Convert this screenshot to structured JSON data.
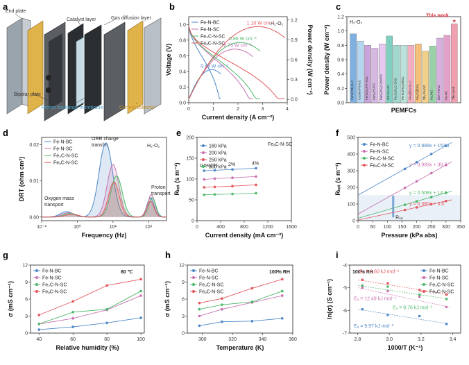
{
  "colors": {
    "BC": "#4a86c8",
    "SC": "#c86fb0",
    "Fe3C": "#4cb86a",
    "FeAC": "#e3555a",
    "P160": "#4a86c8",
    "P200": "#c86fb0",
    "P250": "#e3555a",
    "P300": "#4cb86a",
    "work": "#d9303a"
  },
  "schematic": {
    "label": "a",
    "end_plate": "End plate",
    "catalyst_layer": "Catalyst layer",
    "gas_diffusion_layer": "Gas diffusion layer",
    "bipolar_plate": "Bipolar plate",
    "pem": "Proton exchange membrane",
    "current_collector": "Current collector"
  },
  "chart_data": [
    {
      "panel": "b",
      "type": "line",
      "xlabel": "Current density (A cm⁻²)",
      "ylabel": "Voltage (V)",
      "y2label": "Power density (W cm⁻²)",
      "xlim": [
        0,
        4
      ],
      "ylim": [
        0,
        1.1
      ],
      "y2lim": [
        -0.05,
        1.25
      ],
      "xticks": [
        "0",
        "1",
        "2",
        "3",
        "4"
      ],
      "yticks": [
        "0.0",
        "0.2",
        "0.4",
        "0.6",
        "0.8",
        "1.0"
      ],
      "y2ticks": [
        "0.0",
        "0.3",
        "0.6",
        "0.9",
        "1.2"
      ],
      "annotation": "H₂-O₂",
      "legend": [
        "Fe-N-BC",
        "Fe-N-SC",
        "Fe₃C-N-SC",
        "FeₐC-N-SC"
      ],
      "series": [
        {
          "name": "Fe-N-BC",
          "key": "BC",
          "max_j": 1.3,
          "max_p": 0.45,
          "label": "0.45 W cm⁻²"
        },
        {
          "name": "Fe-N-SC",
          "key": "SC",
          "max_j": 2.6,
          "max_p": 0.76,
          "label": "0.76 W cm⁻²"
        },
        {
          "name": "Fe₃C-N-SC",
          "key": "Fe3C",
          "max_j": 2.9,
          "max_p": 0.86,
          "label": "0.86 W cm⁻²"
        },
        {
          "name": "FeₐC-N-SC",
          "key": "FeAC",
          "max_j": 3.9,
          "max_p": 1.1,
          "label": "1.10 W cm⁻²"
        }
      ]
    },
    {
      "panel": "c",
      "type": "bar",
      "title": "H₂-O₂",
      "xlabel": "PEMFCs",
      "ylabel": "Power density (W cm⁻²)",
      "ylim": [
        0,
        1.2
      ],
      "yticks": [
        "0.0",
        "0.2",
        "0.4",
        "0.6",
        "0.8",
        "1.0",
        "1.2"
      ],
      "callout": "This work",
      "categories": [
        "FeNC/Sb₁N₄C",
        "Cyclen-FeN₄C",
        "Fe/SnS₂/Fe-SNC",
        "FeN₄/HOPC",
        "FeN₄/FeₓC-CNP/C",
        "OP-Fe-NC",
        "Fe₁S₁/N₄C-SNC",
        "Fe-N₄/FeₓC/BNC",
        "Fe₃@Fe-N₄-C",
        "Fe₃C@NG₂",
        "Sb₁-Fe₁NC",
        "Fe₁/NC",
        "dSA-FeNC",
        "Fe-NC",
        "This work"
      ],
      "values": [
        0.96,
        0.86,
        0.8,
        0.76,
        0.82,
        0.93,
        0.8,
        0.8,
        0.8,
        0.82,
        0.72,
        0.79,
        0.9,
        0.94,
        1.1
      ],
      "bar_colors": [
        "#7fb0e0",
        "#b5d6f0",
        "#c9a3d9",
        "#d7b8e3",
        "#e6c9f0",
        "#7fcfc0",
        "#a0d8cf",
        "#b9e3da",
        "#f3b0c0",
        "#f5c07a",
        "#f1d08a",
        "#9ad0a8",
        "#d8b0e0",
        "#e3a0c8",
        "#f0a0b0"
      ]
    },
    {
      "panel": "d",
      "type": "area",
      "xlabel": "Frequency (Hz)",
      "ylabel": "DRT (ohm cm²)",
      "xlim_log10": [
        -2,
        5
      ],
      "ylim": [
        -0.001,
        0.022
      ],
      "xticks": [
        "10⁻²",
        "10⁰",
        "10²",
        "10⁴"
      ],
      "yticks": [
        "0.00",
        "0.01",
        "0.02"
      ],
      "annotation": "H₂-O₂",
      "annotations": [
        "Oxygen mass transport",
        "ORR charge transfer",
        "Proton transport"
      ],
      "legend": [
        "Fe-N-BC",
        "Fe-N-SC",
        "Fe₃C-N-SC",
        "FeₐC-N-SC"
      ],
      "series": [
        {
          "name": "Fe-N-BC",
          "key": "BC",
          "peaks": [
            [
              -0.6,
              0.0015,
              0.35
            ],
            [
              1.6,
              0.0205,
              0.38
            ],
            [
              4.1,
              0.0053,
              0.2
            ]
          ]
        },
        {
          "name": "Fe-N-SC",
          "key": "SC",
          "peaks": [
            [
              -0.5,
              0.0012,
              0.35
            ],
            [
              2.0,
              0.0145,
              0.33
            ],
            [
              4.15,
              0.0062,
              0.2
            ]
          ]
        },
        {
          "name": "Fe₃C-N-SC",
          "key": "Fe3C",
          "peaks": [
            [
              -0.4,
              0.001,
              0.35
            ],
            [
              2.2,
              0.0114,
              0.32
            ],
            [
              4.2,
              0.0054,
              0.2
            ]
          ]
        },
        {
          "name": "FeₐC-N-SC",
          "key": "FeAC",
          "peaks": [
            [
              -0.3,
              0.0008,
              0.35
            ],
            [
              2.05,
              0.0097,
              0.3
            ],
            [
              4.1,
              0.0044,
              0.2
            ]
          ]
        }
      ]
    },
    {
      "panel": "e",
      "type": "scatter",
      "xlabel": "Current density (mA cm⁻²)",
      "ylabel": "Rₜₒₜ (s m⁻¹)",
      "xlim": [
        0,
        1600
      ],
      "ylim": [
        0,
        200
      ],
      "xticks": [
        "0",
        "400",
        "800",
        "1200",
        "1600"
      ],
      "yticks": [
        "0",
        "50",
        "100",
        "150",
        "200"
      ],
      "annotation": "FeₐC-N-SC",
      "pct_labels": [
        "0.5%",
        "1%",
        "2%",
        "4%"
      ],
      "legend": [
        "160 kPa",
        "200 kPa",
        "250 kPa",
        "300 kPa"
      ],
      "x": [
        120,
        300,
        600,
        1000
      ],
      "series": [
        {
          "name": "160 kPa",
          "key": "P160",
          "values": [
            120,
            121,
            123,
            126
          ]
        },
        {
          "name": "200 kPa",
          "key": "P200",
          "values": [
            99,
            101,
            103,
            106
          ]
        },
        {
          "name": "250 kPa",
          "key": "P250",
          "values": [
            80,
            81,
            83,
            86
          ]
        },
        {
          "name": "300 kPa",
          "key": "P300",
          "values": [
            62,
            63,
            64,
            66
          ]
        }
      ]
    },
    {
      "panel": "f",
      "type": "scatter",
      "xlabel": "Pressure (kPa abs)",
      "ylabel": "Rₜₒₜ (s m⁻¹)",
      "xlim": [
        0,
        350
      ],
      "ylim": [
        0,
        500
      ],
      "xticks": [
        "0",
        "50",
        "100",
        "150",
        "200",
        "250",
        "300",
        "350"
      ],
      "yticks": [
        "0",
        "100",
        "200",
        "300",
        "400",
        "500"
      ],
      "rnp_label": "Rₙₚ",
      "legend": [
        "Fe-N-BC",
        "Fe-N-SC",
        "Fe₃C-N-SC",
        "FeₐC-N-SC"
      ],
      "x": [
        160,
        200,
        250,
        300
      ],
      "series": [
        {
          "name": "Fe-N-BC",
          "key": "BC",
          "slope": 0.989,
          "intercept": 153.1,
          "eq": "y = 0.989x + 153.1"
        },
        {
          "name": "Fe-N-SC",
          "key": "SC",
          "slope": 0.983,
          "intercept": 39.7,
          "eq": "y = 0.983x + 39.7"
        },
        {
          "name": "Fe₃C-N-SC",
          "key": "Fe3C",
          "slope": 0.508,
          "intercept": 14.4,
          "eq": "y = 0.508x + 14.4"
        },
        {
          "name": "FeₐC-N-SC",
          "key": "FeAC",
          "slope": 0.38,
          "intercept": 3.6,
          "eq": "y = 0.380x + 3.6"
        }
      ]
    },
    {
      "panel": "g",
      "type": "line",
      "xlabel": "Relative humidity (%)",
      "ylabel": "σ (mS cm⁻¹)",
      "xlim": [
        35,
        102
      ],
      "ylim": [
        0,
        12
      ],
      "xticks": [
        "40",
        "60",
        "80",
        "100"
      ],
      "yticks": [
        "0",
        "3",
        "6",
        "9",
        "12"
      ],
      "annotation": "80 ℃",
      "legend": [
        "Fe-N-BC",
        "Fe-N-SC",
        "Fe₃C-N-SC",
        "FeₐC-N-SC"
      ],
      "x": [
        40,
        60,
        80,
        100
      ],
      "series": [
        {
          "name": "Fe-N-BC",
          "key": "BC",
          "values": [
            0.6,
            1.1,
            1.8,
            2.7
          ]
        },
        {
          "name": "Fe-N-SC",
          "key": "SC",
          "values": [
            1.6,
            2.6,
            4.1,
            6.6
          ]
        },
        {
          "name": "Fe₃C-N-SC",
          "key": "Fe3C",
          "values": [
            1.6,
            3.7,
            4.2,
            7.4
          ]
        },
        {
          "name": "FeₐC-N-SC",
          "key": "FeAC",
          "values": [
            3.2,
            5.6,
            8.4,
            9.5
          ]
        }
      ]
    },
    {
      "panel": "h",
      "type": "line",
      "xlabel": "Temperature (K)",
      "ylabel": "σ (mS cm⁻¹)",
      "xlim": [
        290,
        360
      ],
      "ylim": [
        0,
        12
      ],
      "xticks": [
        "300",
        "320",
        "340",
        "360"
      ],
      "yticks": [
        "0",
        "3",
        "6",
        "9",
        "12"
      ],
      "annotation": "100% RH",
      "legend": [
        "Fe-N-BC",
        "Fe-N-SC",
        "Fe₃C-N-SC",
        "FeₐC-N-SC"
      ],
      "x": [
        298,
        313,
        333,
        353
      ],
      "series": [
        {
          "name": "Fe-N-BC",
          "key": "BC",
          "values": [
            1.3,
            2.0,
            2.1,
            2.6
          ]
        },
        {
          "name": "Fe-N-SC",
          "key": "SC",
          "values": [
            3.0,
            4.2,
            5.4,
            6.6
          ]
        },
        {
          "name": "Fe₃C-N-SC",
          "key": "Fe3C",
          "values": [
            4.2,
            5.0,
            5.5,
            7.4
          ]
        },
        {
          "name": "FeₐC-N-SC",
          "key": "FeAC",
          "values": [
            5.3,
            6.1,
            7.9,
            9.5
          ]
        }
      ]
    },
    {
      "panel": "i",
      "type": "scatter",
      "xlabel": "1000/T (K⁻¹)",
      "ylabel": "ln(σ) (S cm⁻¹)",
      "xlim": [
        2.75,
        3.45
      ],
      "ylim": [
        -7,
        -4
      ],
      "xticks": [
        "2.8",
        "3.0",
        "3.2",
        "3.4"
      ],
      "yticks": [
        "-7",
        "-6",
        "-5",
        "-4"
      ],
      "annotation": "100% RH",
      "legend": [
        "Fe-N-BC",
        "Fe-N-SC",
        "Fe₃C-N-SC",
        "FeₐC-N-SC"
      ],
      "x": [
        2.83,
        2.99,
        3.19,
        3.36
      ],
      "series": [
        {
          "name": "Fe-N-BC",
          "key": "BC",
          "values": [
            -5.95,
            -6.2,
            -6.25,
            -6.6
          ],
          "ea": "Eₐ = 9.97 kJ mol⁻¹"
        },
        {
          "name": "Fe-N-SC",
          "key": "SC",
          "values": [
            -5.0,
            -5.15,
            -5.4,
            -5.85
          ],
          "ea": "Eₐ = 12.49 kJ mol⁻¹"
        },
        {
          "name": "Fe₃C-N-SC",
          "key": "Fe3C",
          "values": [
            -4.9,
            -4.95,
            -5.3,
            -5.5
          ],
          "ea": "Eₐ = 9.76 kJ mol⁻¹"
        },
        {
          "name": "FeₐC-N-SC",
          "key": "FeAC",
          "values": [
            -4.65,
            -4.8,
            -5.1,
            -5.3
          ],
          "ea": "Eₐ = 8.60 kJ mol⁻¹"
        }
      ]
    }
  ]
}
